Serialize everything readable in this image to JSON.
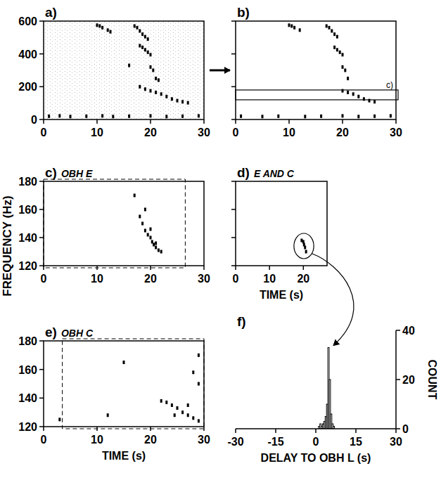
{
  "ylabel": "FREQUENCY (Hz)",
  "chart_data": [
    {
      "type": "scatter",
      "title": "a)",
      "xlim": [
        0,
        30
      ],
      "ylim": [
        0,
        600
      ],
      "xticks": [
        0,
        10,
        20,
        30
      ],
      "yticks": [
        0,
        200,
        400,
        600
      ],
      "color": "#000000",
      "x": [
        10,
        10.5,
        11,
        12,
        12.5,
        17,
        17.5,
        18,
        18.5,
        19,
        19.5,
        18,
        18.5,
        19,
        19.5,
        20,
        16,
        20,
        20.5,
        21,
        21.5,
        18,
        19,
        20,
        21,
        22,
        23,
        24,
        25,
        26,
        27,
        1,
        3,
        5,
        8,
        11,
        13,
        16,
        20,
        23,
        26,
        29
      ],
      "y": [
        575,
        570,
        560,
        545,
        535,
        570,
        560,
        540,
        520,
        505,
        490,
        450,
        440,
        425,
        410,
        395,
        330,
        320,
        300,
        250,
        240,
        200,
        185,
        175,
        165,
        155,
        140,
        125,
        115,
        108,
        102,
        20,
        22,
        18,
        20,
        22,
        18,
        20,
        22,
        18,
        20,
        22
      ]
    },
    {
      "type": "scatter",
      "title": "b)",
      "xlim": [
        0,
        30
      ],
      "ylim": [
        0,
        600
      ],
      "xticks": [
        0,
        10,
        20,
        30
      ],
      "yticks": [
        0,
        200,
        400,
        600
      ],
      "tick_labels": "x",
      "color": "#000000",
      "box_y": [
        120,
        180
      ],
      "box_label": "c)",
      "x": [
        10,
        10.5,
        11,
        12,
        17,
        17.5,
        18,
        18.5,
        19,
        18.5,
        19,
        19.5,
        20,
        20,
        20.5,
        21,
        20,
        21,
        22,
        23,
        24,
        25,
        26,
        1,
        5,
        8,
        13,
        16,
        20,
        23,
        26,
        29
      ],
      "y": [
        575,
        570,
        560,
        545,
        570,
        560,
        540,
        520,
        505,
        440,
        425,
        410,
        395,
        320,
        300,
        250,
        175,
        165,
        155,
        140,
        125,
        115,
        108,
        20,
        18,
        20,
        18,
        20,
        22,
        18,
        20,
        22
      ]
    },
    {
      "type": "scatter",
      "title": "c)",
      "subtitle": "OBH E",
      "xlim": [
        0,
        30
      ],
      "ylim": [
        120,
        180
      ],
      "xticks": [
        0,
        10,
        20,
        30
      ],
      "yticks": [
        120,
        140,
        160,
        180
      ],
      "color": "#000000",
      "window": [
        0,
        26.5
      ],
      "x": [
        17,
        18,
        18.5,
        19,
        19.5,
        20,
        20.3,
        20.6,
        21,
        21.5,
        22,
        21,
        20,
        19
      ],
      "y": [
        170,
        155,
        150,
        145,
        142,
        140,
        137,
        135,
        133,
        131,
        130,
        136,
        146,
        160
      ]
    },
    {
      "type": "scatter",
      "title": "d)",
      "subtitle": "E AND C",
      "xlabel": "TIME (s)",
      "xlim": [
        0,
        27
      ],
      "ylim": [
        120,
        180
      ],
      "xticks": [
        0,
        10,
        20
      ],
      "yticks": [
        120,
        140,
        160,
        180
      ],
      "tick_labels": "x",
      "color": "#000000",
      "x": [
        19.5,
        20,
        20.2,
        20.5,
        20.8
      ],
      "y": [
        138,
        137,
        135,
        133,
        130
      ]
    },
    {
      "type": "scatter",
      "title": "e)",
      "subtitle": "OBH C",
      "xlabel": "TIME (s)",
      "xlim": [
        0,
        30
      ],
      "ylim": [
        120,
        180
      ],
      "xticks": [
        0,
        10,
        20,
        30
      ],
      "yticks": [
        120,
        140,
        160,
        180
      ],
      "color": "#000000",
      "window": [
        3.5,
        30
      ],
      "x": [
        3,
        12,
        15,
        22,
        23,
        24,
        25,
        26,
        27,
        28,
        29,
        28,
        29,
        29,
        27,
        24.5
      ],
      "y": [
        125,
        128,
        165,
        138,
        137,
        135,
        133,
        130,
        128,
        126,
        124,
        158,
        170,
        150,
        135,
        128
      ]
    },
    {
      "type": "histogram",
      "title": "f)",
      "xlabel": "DELAY TO OBH L (s)",
      "ylabel": "COUNT",
      "xlim": [
        -30,
        30
      ],
      "ylim": [
        0,
        40
      ],
      "xticks": [
        -30,
        -15,
        0,
        15,
        30
      ],
      "yticks": [
        0,
        20,
        40
      ],
      "color": "#000000",
      "bins": [
        1,
        1.5,
        2,
        2.5,
        3,
        3.5,
        4,
        4.5,
        5,
        5.5,
        6,
        6.5,
        7,
        7.5,
        8
      ],
      "counts": [
        1,
        2,
        1,
        2,
        3,
        5,
        10,
        33,
        20,
        6,
        2,
        1,
        0,
        0
      ]
    }
  ]
}
